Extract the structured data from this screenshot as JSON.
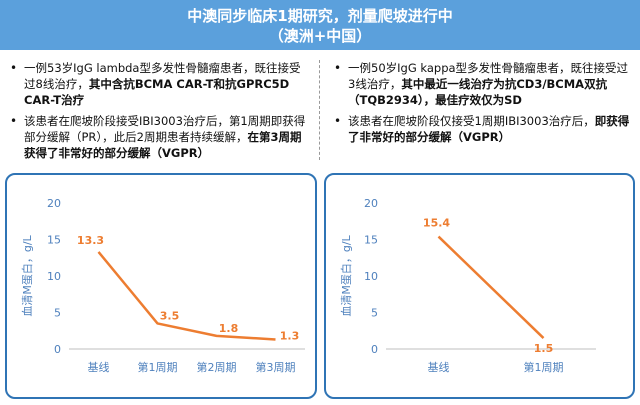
{
  "header": {
    "line1": "中澳同步临床1期研究，剂量爬坡进行中",
    "line2": "（澳洲+中国）"
  },
  "left_text": {
    "b1_pre": "一例53岁IgG lambda型多发性骨髓瘤患者，既往接受过8线治疗，",
    "b1_bold": "其中含抗BCMA CAR-T和抗GPRC5D CAR-T治疗",
    "b2_pre": "该患者在爬坡阶段接受IBI3003治疗后，第1周期即获得部分缓解（PR），此后2周期患者持续缓解，",
    "b2_bold": "在第3周期获得了非常好的部分缓解（VGPR）"
  },
  "right_text": {
    "b1_pre": "一例50岁IgG kappa型多发性骨髓瘤患者，既往接受过3线治疗，",
    "b1_bold": "其中最近一线治疗为抗CD3/BCMA双抗（TQB2934），最佳疗效仅为SD",
    "b2_pre": "该患者在爬坡阶段仅接受1周期IBI3003治疗后，",
    "b2_bold": "即获得了非常好的部分缓解（VGPR）"
  },
  "colors": {
    "header_bg": "#5ba0dc",
    "panel_border": "#2f74b5",
    "line": "#ed7d31",
    "label": "#ed7d31",
    "axis_text": "#4f81bd"
  },
  "chart_data": [
    {
      "type": "line",
      "categories": [
        "基线",
        "第1周期",
        "第2周期",
        "第3周期"
      ],
      "values": [
        13.3,
        3.5,
        1.8,
        1.3
      ],
      "data_labels": [
        "13.3",
        "3.5",
        "1.8",
        "1.3"
      ],
      "ylabel": "血清M蛋白，g/L",
      "yticks": [
        "0",
        "5",
        "10",
        "15",
        "20"
      ],
      "ylim": [
        0,
        20
      ],
      "grid": false
    },
    {
      "type": "line",
      "categories": [
        "基线",
        "第1周期"
      ],
      "values": [
        15.4,
        1.5
      ],
      "data_labels": [
        "15.4",
        "1.5"
      ],
      "ylabel": "血清M蛋白，g/L",
      "yticks": [
        "0",
        "5",
        "10",
        "15",
        "20"
      ],
      "ylim": [
        0,
        20
      ],
      "grid": false
    }
  ]
}
